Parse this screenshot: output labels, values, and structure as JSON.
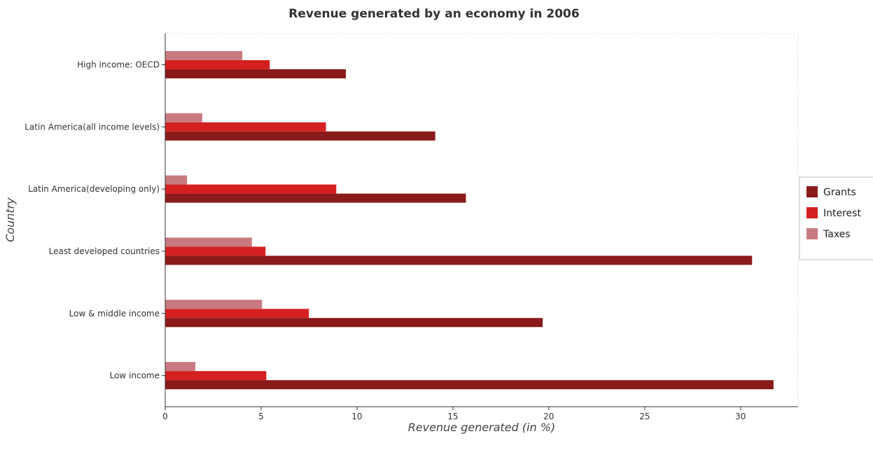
{
  "chart_data": {
    "type": "bar",
    "orientation": "horizontal",
    "title": "Revenue generated by an economy in 2006",
    "xlabel": "Revenue generated (in %)",
    "ylabel": "Country",
    "xlim": [
      0,
      33
    ],
    "xticks": [
      0,
      5,
      10,
      15,
      20,
      25,
      30
    ],
    "categories": [
      "High income: OECD",
      "Latin America(all income levels)",
      "Latin America(developing only)",
      "Least developed countries",
      "Low & middle income",
      "Low income"
    ],
    "series": [
      {
        "name": "Grants",
        "color": "#8b1a1a",
        "values": [
          9.42,
          14.08,
          15.68,
          30.6,
          19.68,
          31.72
        ]
      },
      {
        "name": "Interest",
        "color": "#d42020",
        "values": [
          5.45,
          8.38,
          8.92,
          5.23,
          7.49,
          5.27
        ]
      },
      {
        "name": "Taxes",
        "color": "#c97a80",
        "values": [
          4.02,
          1.93,
          1.14,
          4.52,
          5.05,
          1.57
        ]
      }
    ],
    "legend_position": "right",
    "grid": false
  }
}
